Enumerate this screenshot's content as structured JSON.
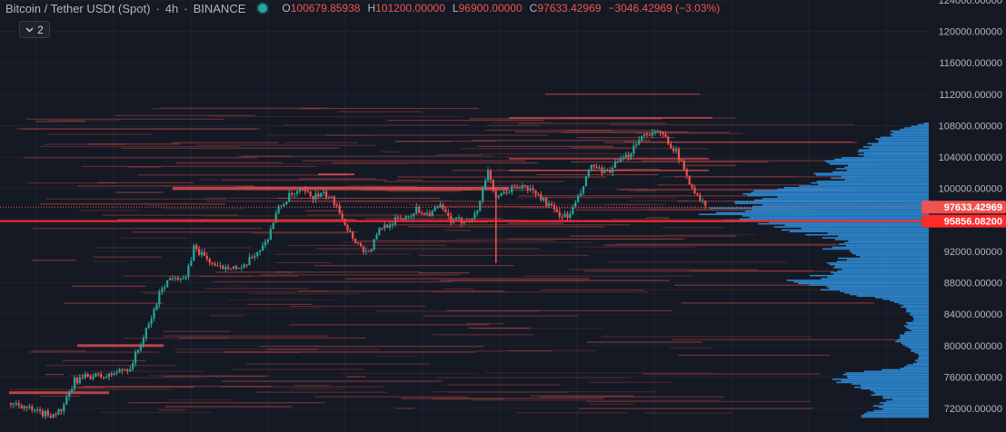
{
  "header": {
    "symbol": "Bitcoin / Tether USDt (Spot)",
    "interval": "4h",
    "exchange": "BINANCE",
    "ohlc": {
      "o_label": "O",
      "o_value": "100679.85938",
      "h_label": "H",
      "h_value": "101200.00000",
      "l_label": "L",
      "l_value": "96900.00000",
      "c_label": "C",
      "c_value": "97633.42969",
      "change": "−3046.42969 (−3.03%)"
    },
    "indicator_count": "2",
    "collapse_icon": "chevron-down-icon"
  },
  "colors": {
    "background": "#151924",
    "up": "#26a69a",
    "down": "#ef5350",
    "profile": "#2f8fdc",
    "price_line": "#ff2a2a",
    "grid": "#1f2330"
  },
  "chart_data": {
    "type": "candlestick",
    "y_axis": {
      "ticks": [
        "124000.00000",
        "120000.00000",
        "116000.00000",
        "112000.00000",
        "108000.00000",
        "104000.00000",
        "100000.00000",
        "96000.00000",
        "92000.00000",
        "88000.00000",
        "84000.00000",
        "80000.00000",
        "76000.00000",
        "72000.00000"
      ],
      "ylim": [
        70500,
        125000
      ],
      "grid": true
    },
    "current_price": {
      "value": 97633.42969,
      "label": "97633.42969"
    },
    "marked_level": {
      "value": 95856.082,
      "label": "95856.08200"
    },
    "price_path": [
      [
        0,
        72700
      ],
      [
        1.5,
        72400
      ],
      [
        3,
        71500
      ],
      [
        5,
        71200
      ],
      [
        6.5,
        71800
      ],
      [
        8,
        75500
      ],
      [
        10,
        76200
      ],
      [
        12,
        76000
      ],
      [
        13.5,
        76700
      ],
      [
        15,
        77200
      ],
      [
        16,
        79500
      ],
      [
        17.5,
        83000
      ],
      [
        19,
        87500
      ],
      [
        20.5,
        89000
      ],
      [
        22,
        88400
      ],
      [
        23,
        92500
      ],
      [
        24.5,
        91200
      ],
      [
        26,
        89800
      ],
      [
        27.5,
        90300
      ],
      [
        29,
        89500
      ],
      [
        30.5,
        91500
      ],
      [
        32,
        93000
      ],
      [
        33.5,
        97200
      ],
      [
        35,
        99000
      ],
      [
        36.5,
        99600
      ],
      [
        38,
        99000
      ],
      [
        39.5,
        99200
      ],
      [
        41,
        98000
      ],
      [
        42.5,
        94500
      ],
      [
        44,
        92500
      ],
      [
        45,
        91800
      ],
      [
        46.5,
        95000
      ],
      [
        48,
        95800
      ],
      [
        49.5,
        96300
      ],
      [
        51,
        97300
      ],
      [
        52.5,
        96800
      ],
      [
        54,
        97600
      ],
      [
        55.5,
        95700
      ],
      [
        57,
        96000
      ],
      [
        58.5,
        96600
      ],
      [
        60,
        102500
      ],
      [
        61,
        98500
      ],
      [
        62.5,
        99800
      ],
      [
        64,
        100300
      ],
      [
        65.5,
        99800
      ],
      [
        67,
        98500
      ],
      [
        68.5,
        97000
      ],
      [
        70,
        96300
      ],
      [
        71.5,
        99000
      ],
      [
        73,
        103000
      ],
      [
        74.5,
        101800
      ],
      [
        76,
        103000
      ],
      [
        77.5,
        104000
      ],
      [
        79,
        106500
      ],
      [
        80.5,
        107200
      ],
      [
        82,
        106800
      ],
      [
        83.5,
        105000
      ],
      [
        85,
        101600
      ],
      [
        86.5,
        98600
      ],
      [
        87.5,
        97700
      ]
    ],
    "wicks": [
      {
        "x": 61,
        "high": 99000,
        "low": 90500
      }
    ]
  }
}
